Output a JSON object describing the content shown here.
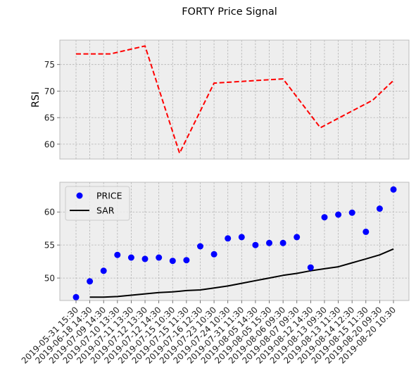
{
  "chart_data": [
    {
      "type": "line",
      "title": "FORTY Price Signal",
      "ylabel": "RSI",
      "ylim": [
        57.2,
        79.6
      ],
      "yticks": [
        60,
        65,
        70,
        75
      ],
      "grid": true,
      "series": [
        {
          "color": "#ff0000",
          "linestyle": "dashed",
          "points": [
            {
              "i": 0,
              "y": 77.0
            },
            {
              "i": 2.5,
              "y": 77.0
            },
            {
              "i": 5,
              "y": 78.5
            },
            {
              "i": 7.5,
              "y": 58.3
            },
            {
              "i": 10,
              "y": 71.5
            },
            {
              "i": 15,
              "y": 72.3
            },
            {
              "i": 17.7,
              "y": 63.1
            },
            {
              "i": 21.5,
              "y": 68.3
            },
            {
              "i": 23,
              "y": 72.0
            }
          ]
        }
      ]
    },
    {
      "type": "scatter",
      "xlabel": "",
      "ylim": [
        46.6,
        64.5
      ],
      "yticks": [
        50,
        55,
        60
      ],
      "grid": true,
      "legend": "top-left",
      "categories": [
        "2019-05-31 15:30",
        "2019-06-18 14:30",
        "2019-07-09 14:30",
        "2019-07-10 13:30",
        "2019-07-11 13:30",
        "2019-07-12 13:30",
        "2019-07-12 14:30",
        "2019-07-15 10:30",
        "2019-07-15 11:30",
        "2019-07-16 12:30",
        "2019-07-23 10:30",
        "2019-07-24 10:30",
        "2019-07-31 11:30",
        "2019-08-05 14:30",
        "2019-08-05 15:30",
        "2019-08-06 09:30",
        "2019-08-07 09:30",
        "2019-08-12 14:30",
        "2019-08-13 09:30",
        "2019-08-13 11:30",
        "2019-08-14 12:30",
        "2019-08-15 11:30",
        "2019-08-20 09:30",
        "2019-08-20 10:30"
      ],
      "series": [
        {
          "name": "PRICE",
          "kind": "markers",
          "color": "#0000ff",
          "values": [
            47.1,
            49.5,
            51.1,
            53.5,
            53.1,
            52.9,
            53.1,
            52.6,
            52.7,
            54.8,
            53.6,
            56.0,
            56.2,
            55.0,
            55.3,
            55.3,
            56.2,
            51.6,
            59.2,
            59.6,
            59.9,
            57.0,
            60.5,
            63.4
          ]
        },
        {
          "name": "SAR",
          "kind": "line",
          "color": "#000000",
          "values": [
            null,
            47.1,
            47.1,
            47.2,
            47.4,
            47.6,
            47.8,
            47.9,
            48.1,
            48.2,
            48.5,
            48.8,
            49.2,
            49.6,
            50.0,
            50.4,
            50.7,
            51.1,
            51.4,
            51.7,
            52.3,
            52.9,
            53.5,
            54.4
          ]
        }
      ]
    }
  ]
}
